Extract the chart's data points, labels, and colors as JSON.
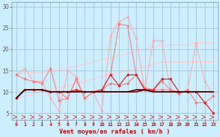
{
  "x": [
    0,
    1,
    2,
    3,
    4,
    5,
    6,
    7,
    8,
    9,
    10,
    11,
    12,
    13,
    14,
    15,
    16,
    17,
    18,
    19,
    20,
    21,
    22,
    23
  ],
  "line_dark1": [
    8.5,
    10.5,
    10.5,
    10.5,
    10.0,
    10.0,
    10.0,
    10.0,
    10.0,
    10.0,
    10.0,
    10.0,
    10.0,
    10.0,
    10.5,
    10.5,
    10.0,
    10.0,
    10.0,
    10.0,
    10.0,
    10.0,
    10.0,
    10.0
  ],
  "line_dark2": [
    8.5,
    10.5,
    10.5,
    10.5,
    10.0,
    10.0,
    10.0,
    10.0,
    10.0,
    10.0,
    10.0,
    10.0,
    10.0,
    10.0,
    10.0,
    10.5,
    10.0,
    10.0,
    10.0,
    10.0,
    10.0,
    10.0,
    10.0,
    10.0
  ],
  "line_med1": [
    8.5,
    10.5,
    10.5,
    10.5,
    10.0,
    10.0,
    10.0,
    10.5,
    10.0,
    10.0,
    10.5,
    14.0,
    11.5,
    14.0,
    14.0,
    10.5,
    10.5,
    13.0,
    13.0,
    10.0,
    10.0,
    10.0,
    7.5,
    5.0
  ],
  "line_med2": [
    14.0,
    13.0,
    12.5,
    12.0,
    15.5,
    8.0,
    8.5,
    13.0,
    8.5,
    10.0,
    10.5,
    12.0,
    11.5,
    12.0,
    14.0,
    10.5,
    10.5,
    12.5,
    10.5,
    9.5,
    10.5,
    7.5,
    7.5,
    9.0
  ],
  "line_light1": [
    14.0,
    15.5,
    12.5,
    12.5,
    8.5,
    5.5,
    15.0,
    13.5,
    8.5,
    10.0,
    5.5,
    23.0,
    26.5,
    27.5,
    22.5,
    10.5,
    22.0,
    22.0,
    10.5,
    9.5,
    10.5,
    21.5,
    12.5,
    9.0
  ],
  "line_light2": [
    8.5,
    10.5,
    10.5,
    10.5,
    10.0,
    10.0,
    8.5,
    13.0,
    8.5,
    10.0,
    10.5,
    14.0,
    26.0,
    25.5,
    14.0,
    11.0,
    10.5,
    10.5,
    10.5,
    10.0,
    10.0,
    10.0,
    7.5,
    5.0
  ],
  "trend_lower": [
    8.5,
    9.0,
    9.5,
    10.0,
    10.5,
    11.0,
    11.5,
    12.0,
    12.5,
    13.0,
    13.5,
    14.0,
    14.5,
    15.0,
    15.5,
    16.0,
    16.5,
    17.0,
    17.0,
    17.0,
    17.0,
    17.0,
    17.0,
    17.0
  ],
  "trend_upper": [
    14.0,
    14.5,
    14.5,
    14.5,
    15.0,
    15.0,
    15.5,
    16.0,
    16.5,
    17.0,
    17.5,
    18.0,
    18.5,
    19.0,
    19.5,
    20.0,
    20.5,
    21.0,
    21.0,
    21.0,
    21.0,
    21.5,
    21.5,
    21.5
  ],
  "bg_color": "#cceeff",
  "grid_color": "#99bbcc",
  "color_darkest": "#440000",
  "color_dark": "#880000",
  "color_med": "#dd2222",
  "color_light": "#ff7777",
  "color_lightest": "#ffaaaa",
  "color_trend": "#ffcccc",
  "xlabel": "Vent moyen/en rafales ( km/h )",
  "yticks": [
    5,
    10,
    15,
    20,
    25,
    30
  ],
  "xlim": [
    -0.5,
    23.5
  ],
  "ylim": [
    3.5,
    31
  ]
}
